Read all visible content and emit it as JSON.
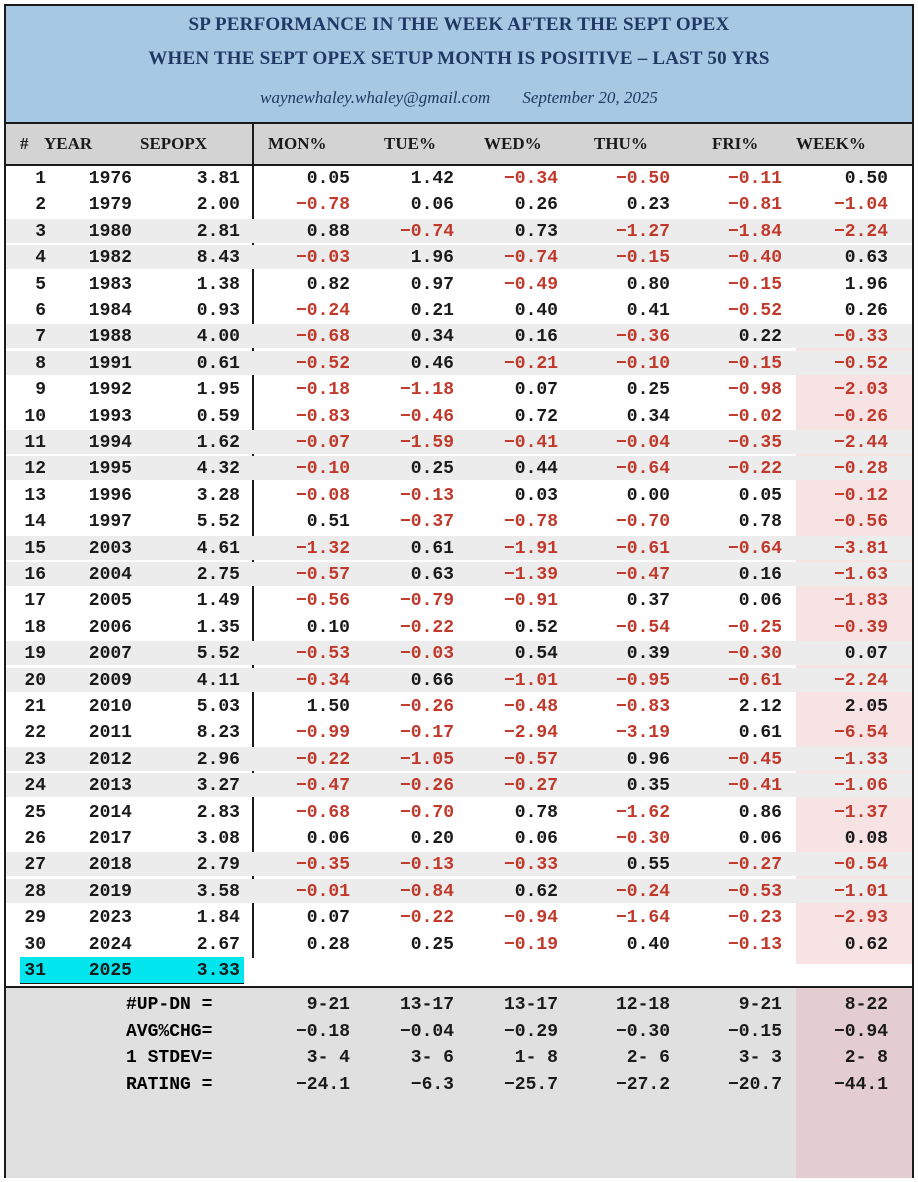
{
  "title": {
    "line1": "SP PERFORMANCE IN THE WEEK AFTER THE SEPT OPEX",
    "line2": "WHEN THE SEPT OPEX SETUP MONTH IS POSITIVE – LAST 50 YRS",
    "email": "waynewhaley.whaley@gmail.com",
    "date": "September 20, 2025"
  },
  "headers": [
    "#",
    "YEAR",
    "SEPOPX",
    "MON%",
    "TUE%",
    "WED%",
    "THU%",
    "FRI%",
    "WEEK%"
  ],
  "colors": {
    "title_bg": "#a6c8e2",
    "negative": "#c0392b",
    "highlight": "#00e5ee",
    "week_band": "#f7e2e4"
  },
  "chart_data": {
    "type": "table",
    "columns": [
      "#",
      "YEAR",
      "SEPOPX",
      "MON%",
      "TUE%",
      "WED%",
      "THU%",
      "FRI%",
      "WEEK%"
    ],
    "rows": [
      [
        "1",
        "1976",
        "3.81",
        "0.05",
        "1.42",
        "-0.34",
        "-0.50",
        "-0.11",
        "0.50"
      ],
      [
        "2",
        "1979",
        "2.00",
        "-0.78",
        "0.06",
        "0.26",
        "0.23",
        "-0.81",
        "-1.04"
      ],
      [
        "3",
        "1980",
        "2.81",
        "0.88",
        "-0.74",
        "0.73",
        "-1.27",
        "-1.84",
        "-2.24"
      ],
      [
        "4",
        "1982",
        "8.43",
        "-0.03",
        "1.96",
        "-0.74",
        "-0.15",
        "-0.40",
        "0.63"
      ],
      [
        "5",
        "1983",
        "1.38",
        "0.82",
        "0.97",
        "-0.49",
        "0.80",
        "-0.15",
        "1.96"
      ],
      [
        "6",
        "1984",
        "0.93",
        "-0.24",
        "0.21",
        "0.40",
        "0.41",
        "-0.52",
        "0.26"
      ],
      [
        "7",
        "1988",
        "4.00",
        "-0.68",
        "0.34",
        "0.16",
        "-0.36",
        "0.22",
        "-0.33"
      ],
      [
        "8",
        "1991",
        "0.61",
        "-0.52",
        "0.46",
        "-0.21",
        "-0.10",
        "-0.15",
        "-0.52"
      ],
      [
        "9",
        "1992",
        "1.95",
        "-0.18",
        "-1.18",
        "0.07",
        "0.25",
        "-0.98",
        "-2.03"
      ],
      [
        "10",
        "1993",
        "0.59",
        "-0.83",
        "-0.46",
        "0.72",
        "0.34",
        "-0.02",
        "-0.26"
      ],
      [
        "11",
        "1994",
        "1.62",
        "-0.07",
        "-1.59",
        "-0.41",
        "-0.04",
        "-0.35",
        "-2.44"
      ],
      [
        "12",
        "1995",
        "4.32",
        "-0.10",
        "0.25",
        "0.44",
        "-0.64",
        "-0.22",
        "-0.28"
      ],
      [
        "13",
        "1996",
        "3.28",
        "-0.08",
        "-0.13",
        "0.03",
        "0.00",
        "0.05",
        "-0.12"
      ],
      [
        "14",
        "1997",
        "5.52",
        "0.51",
        "-0.37",
        "-0.78",
        "-0.70",
        "0.78",
        "-0.56"
      ],
      [
        "15",
        "2003",
        "4.61",
        "-1.32",
        "0.61",
        "-1.91",
        "-0.61",
        "-0.64",
        "-3.81"
      ],
      [
        "16",
        "2004",
        "2.75",
        "-0.57",
        "0.63",
        "-1.39",
        "-0.47",
        "0.16",
        "-1.63"
      ],
      [
        "17",
        "2005",
        "1.49",
        "-0.56",
        "-0.79",
        "-0.91",
        "0.37",
        "0.06",
        "-1.83"
      ],
      [
        "18",
        "2006",
        "1.35",
        "0.10",
        "-0.22",
        "0.52",
        "-0.54",
        "-0.25",
        "-0.39"
      ],
      [
        "19",
        "2007",
        "5.52",
        "-0.53",
        "-0.03",
        "0.54",
        "0.39",
        "-0.30",
        "0.07"
      ],
      [
        "20",
        "2009",
        "4.11",
        "-0.34",
        "0.66",
        "-1.01",
        "-0.95",
        "-0.61",
        "-2.24"
      ],
      [
        "21",
        "2010",
        "5.03",
        "1.50",
        "-0.26",
        "-0.48",
        "-0.83",
        "2.12",
        "2.05"
      ],
      [
        "22",
        "2011",
        "8.23",
        "-0.99",
        "-0.17",
        "-2.94",
        "-3.19",
        "0.61",
        "-6.54"
      ],
      [
        "23",
        "2012",
        "2.96",
        "-0.22",
        "-1.05",
        "-0.57",
        "0.96",
        "-0.45",
        "-1.33"
      ],
      [
        "24",
        "2013",
        "3.27",
        "-0.47",
        "-0.26",
        "-0.27",
        "0.35",
        "-0.41",
        "-1.06"
      ],
      [
        "25",
        "2014",
        "2.83",
        "-0.68",
        "-0.70",
        "0.78",
        "-1.62",
        "0.86",
        "-1.37"
      ],
      [
        "26",
        "2017",
        "3.08",
        "0.06",
        "0.20",
        "0.06",
        "-0.30",
        "0.06",
        "0.08"
      ],
      [
        "27",
        "2018",
        "2.79",
        "-0.35",
        "-0.13",
        "-0.33",
        "0.55",
        "-0.27",
        "-0.54"
      ],
      [
        "28",
        "2019",
        "3.58",
        "-0.01",
        "-0.84",
        "0.62",
        "-0.24",
        "-0.53",
        "-1.01"
      ],
      [
        "29",
        "2023",
        "1.84",
        "0.07",
        "-0.22",
        "-0.94",
        "-1.64",
        "-0.23",
        "-2.93"
      ],
      [
        "30",
        "2024",
        "2.67",
        "0.28",
        "0.25",
        "-0.19",
        "0.40",
        "-0.13",
        "0.62"
      ],
      [
        "31",
        "2025",
        "3.33",
        "",
        "",
        "",
        "",
        "",
        ""
      ]
    ],
    "summary": [
      {
        "label": "#UP-DN =",
        "values": [
          "9-21",
          "13-17",
          "13-17",
          "12-18",
          "9-21",
          "8-22"
        ]
      },
      {
        "label": "AVG%CHG=",
        "values": [
          "-0.18",
          "-0.04",
          "-0.29",
          "-0.30",
          "-0.15",
          "-0.94"
        ]
      },
      {
        "label": "1 STDEV=",
        "values": [
          "3- 4",
          "3- 6",
          "1- 8",
          "2- 6",
          "3- 3",
          "2- 8"
        ]
      },
      {
        "label": "RATING =",
        "values": [
          "-24.1",
          "-6.3",
          "-25.7",
          "-27.2",
          "-20.7",
          "-44.1"
        ]
      }
    ]
  }
}
